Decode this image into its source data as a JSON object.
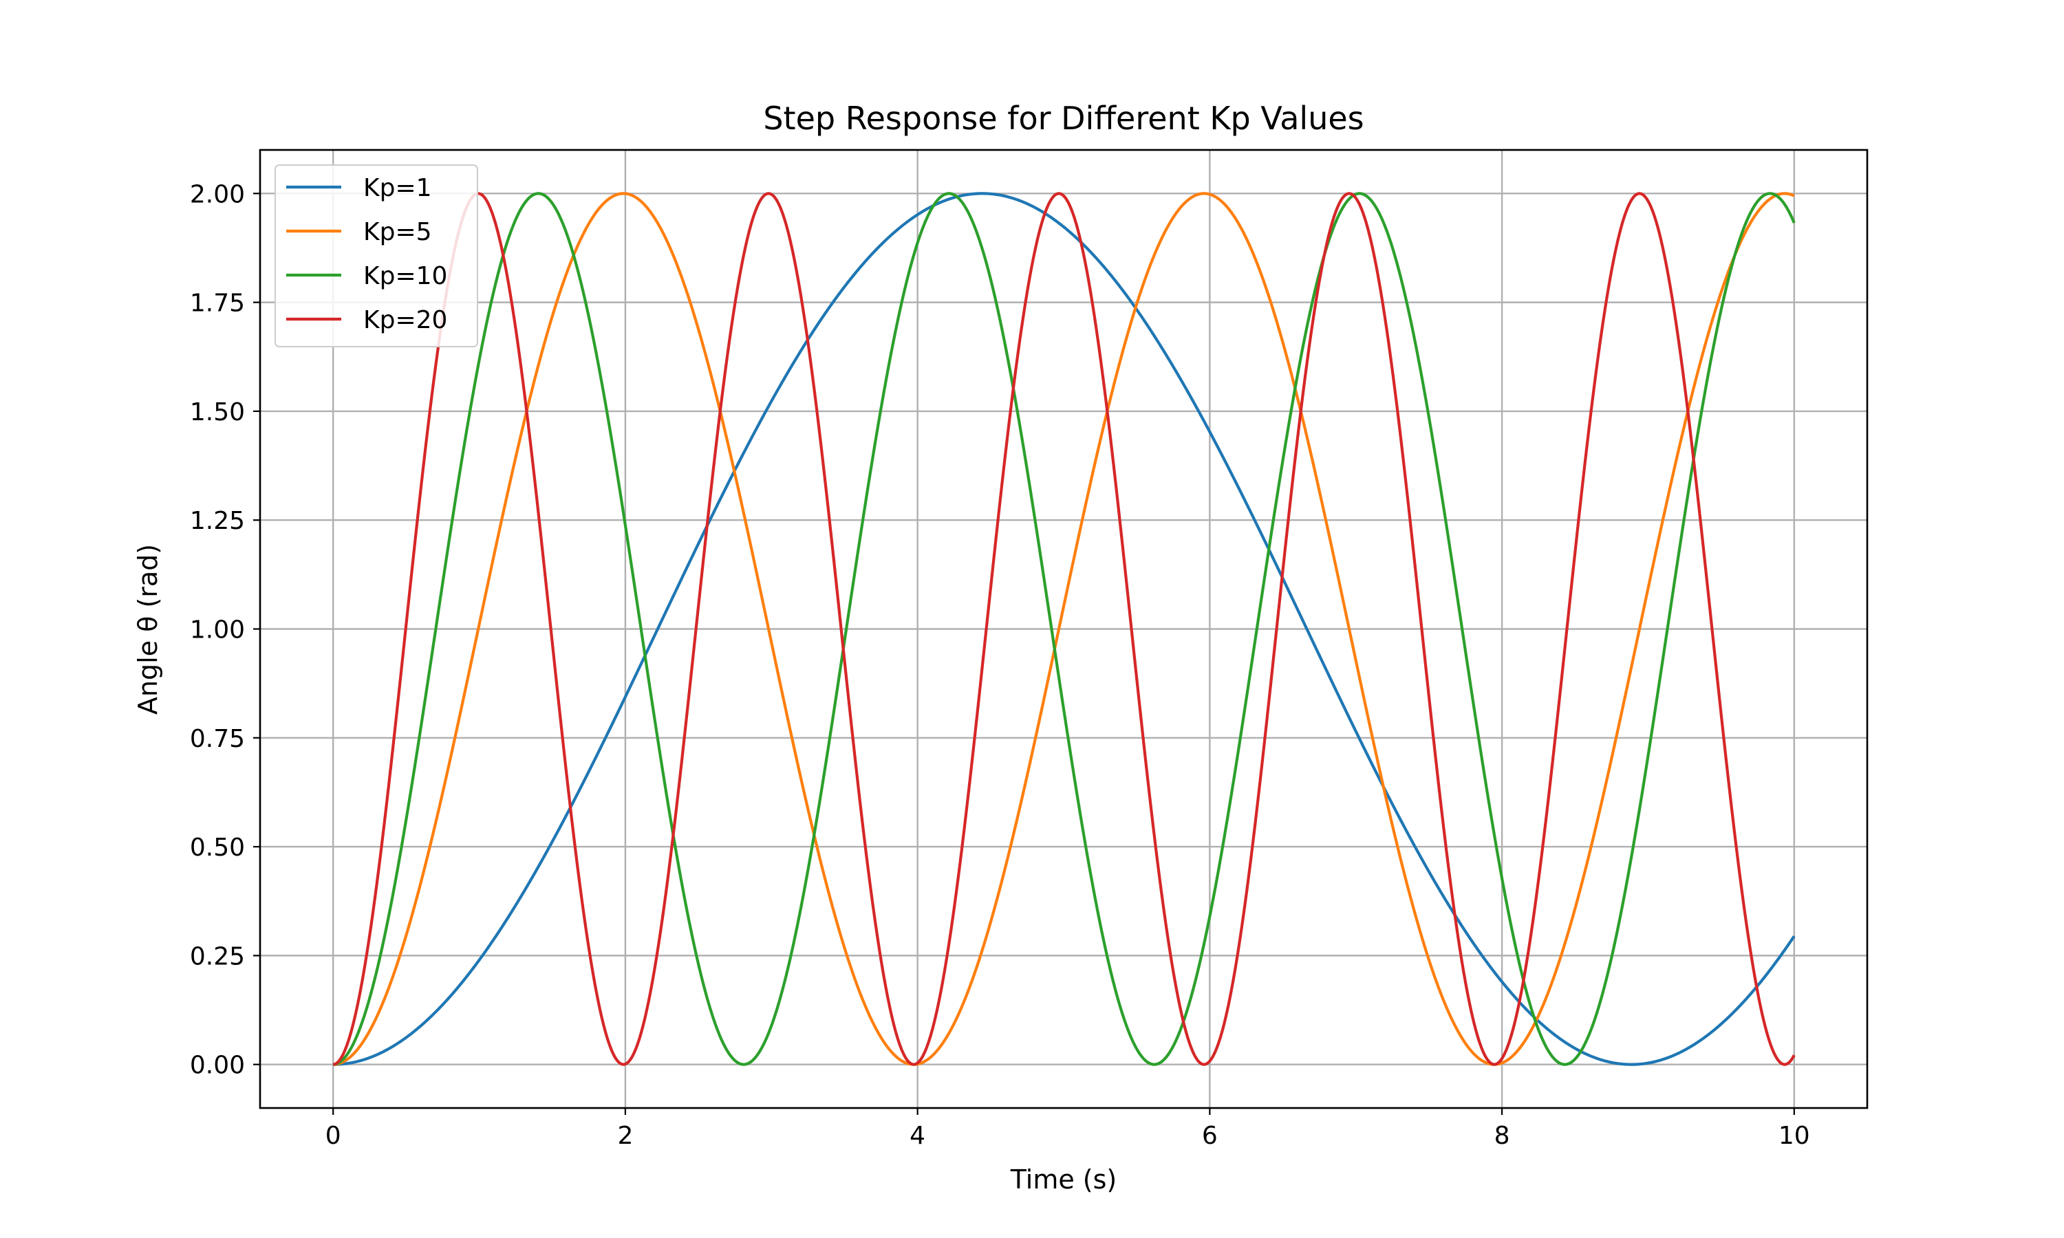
{
  "chart_data": {
    "type": "line",
    "title": "Step Response for Different Kp Values",
    "xlabel": "Time (s)",
    "ylabel": "Angle θ (rad)",
    "xlim": [
      -0.5,
      10.5
    ],
    "ylim": [
      -0.1,
      2.1
    ],
    "x_ticks": [
      0,
      2,
      4,
      6,
      8,
      10
    ],
    "x_tick_labels": [
      "0",
      "2",
      "4",
      "6",
      "8",
      "10"
    ],
    "y_ticks": [
      0,
      0.25,
      0.5,
      0.75,
      1.0,
      1.25,
      1.5,
      1.75,
      2.0
    ],
    "y_tick_labels": [
      "0.00",
      "0.25",
      "0.50",
      "0.75",
      "1.00",
      "1.25",
      "1.50",
      "1.75",
      "2.00"
    ],
    "grid": true,
    "legend_position": "upper-left",
    "model": "theta(t) = 1 - cos(sqrt(Kp/2) * t)",
    "t_range": [
      0,
      10
    ],
    "series": [
      {
        "name": "Kp=1",
        "kp": 1,
        "color": "#1f77b4"
      },
      {
        "name": "Kp=5",
        "kp": 5,
        "color": "#ff7f0e"
      },
      {
        "name": "Kp=10",
        "kp": 10,
        "color": "#2ca02c"
      },
      {
        "name": "Kp=20",
        "kp": 20,
        "color": "#d62728"
      }
    ]
  }
}
